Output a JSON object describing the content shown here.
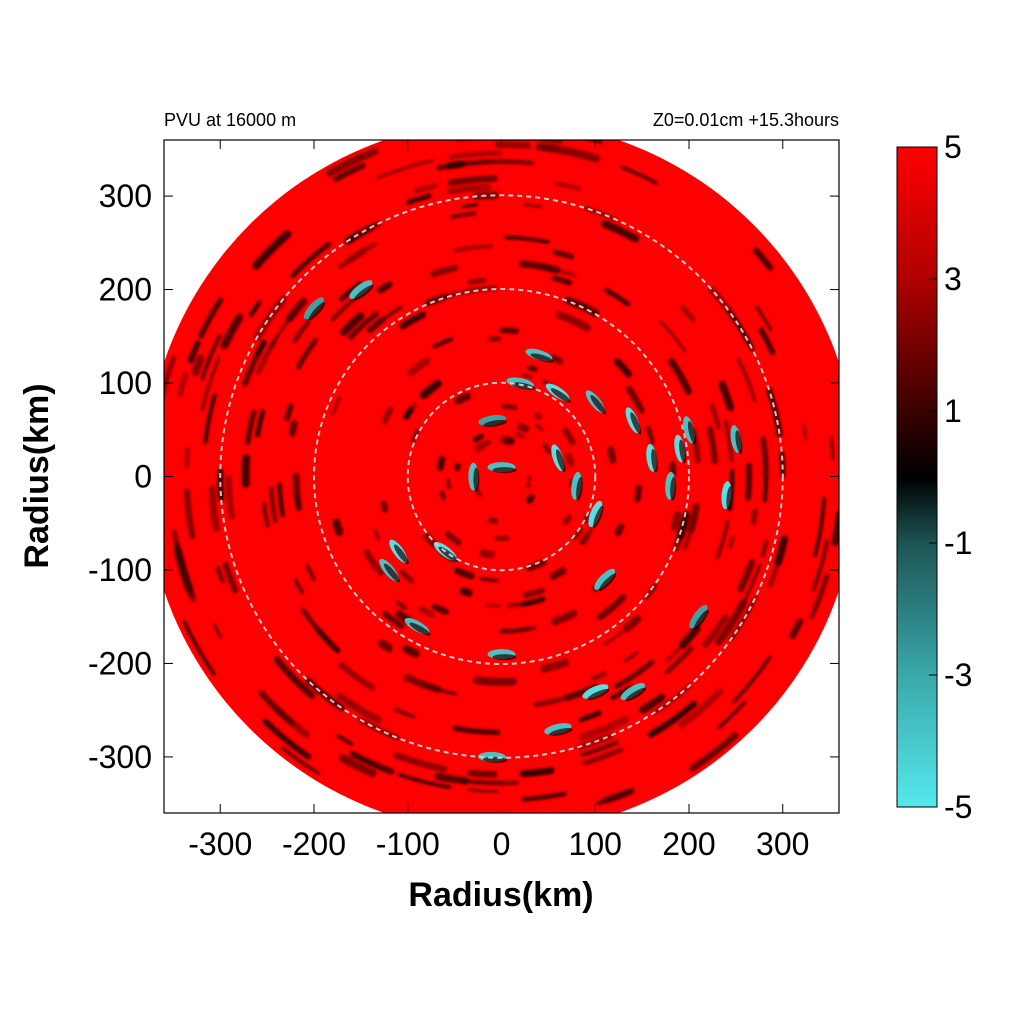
{
  "chart_data": {
    "type": "heatmap",
    "projection": "polar-domain-on-cartesian-axes",
    "title_left": "PVU at 16000 m",
    "title_right": "Z0=0.01cm  +15.3hours",
    "xlabel": "Radius(km)",
    "ylabel": "Radius(km)",
    "xlim": [
      -360,
      360
    ],
    "ylim": [
      -360,
      360
    ],
    "xticks": [
      -300,
      -200,
      -100,
      0,
      100,
      200,
      300
    ],
    "yticks": [
      300,
      200,
      100,
      0,
      -100,
      -200,
      -300
    ],
    "xtick_labels": [
      "-300",
      "-200",
      "-100",
      "0",
      "100",
      "200",
      "300"
    ],
    "ytick_labels": [
      "300",
      "200",
      "100",
      "0",
      "-100",
      "-200",
      "-300"
    ],
    "domain_radius_km": 380,
    "reference_circles_km": [
      100,
      200,
      300
    ],
    "colorbar": {
      "min": -5,
      "max": 5,
      "tick_values": [
        5,
        3,
        1,
        -1,
        -3,
        -5
      ],
      "tick_labels": [
        "5",
        "3",
        "1",
        "-1",
        "-3",
        "-5"
      ],
      "stops": [
        {
          "value": -5,
          "color": "#55e8ec"
        },
        {
          "value": -3,
          "color": "#3aa8aa"
        },
        {
          "value": -1,
          "color": "#1e5454"
        },
        {
          "value": 0,
          "color": "#000000"
        },
        {
          "value": 1,
          "color": "#3a0000"
        },
        {
          "value": 3,
          "color": "#b00000"
        },
        {
          "value": 5,
          "color": "#ff0000"
        }
      ]
    },
    "colors": {
      "background_field": "#ff0000",
      "reference_circle": "#cccccc",
      "frame": "#000000"
    },
    "negative_patches": [
      {
        "x": 20,
        "y": 100,
        "value": -4
      },
      {
        "x": 60,
        "y": 90,
        "value": -5
      },
      {
        "x": 100,
        "y": 80,
        "value": -4
      },
      {
        "x": 140,
        "y": 60,
        "value": -5
      },
      {
        "x": 160,
        "y": 20,
        "value": -5
      },
      {
        "x": 180,
        "y": -10,
        "value": -4
      },
      {
        "x": 190,
        "y": 30,
        "value": -5
      },
      {
        "x": 200,
        "y": 50,
        "value": -4
      },
      {
        "x": 240,
        "y": -20,
        "value": -5
      },
      {
        "x": 250,
        "y": 40,
        "value": -4
      },
      {
        "x": 100,
        "y": -40,
        "value": -5
      },
      {
        "x": 80,
        "y": -10,
        "value": -4
      },
      {
        "x": 60,
        "y": 20,
        "value": -5
      },
      {
        "x": 0,
        "y": 10,
        "value": -4
      },
      {
        "x": -30,
        "y": 0,
        "value": -4
      },
      {
        "x": -60,
        "y": -80,
        "value": -5
      },
      {
        "x": -110,
        "y": -80,
        "value": -5
      },
      {
        "x": -120,
        "y": -100,
        "value": -4
      },
      {
        "x": -90,
        "y": -160,
        "value": -4
      },
      {
        "x": -150,
        "y": 200,
        "value": -4
      },
      {
        "x": -200,
        "y": 180,
        "value": -3
      },
      {
        "x": 0,
        "y": -190,
        "value": -4
      },
      {
        "x": 60,
        "y": -270,
        "value": -4
      },
      {
        "x": 100,
        "y": -230,
        "value": -5
      },
      {
        "x": 140,
        "y": -230,
        "value": -4
      },
      {
        "x": 110,
        "y": -110,
        "value": -4
      },
      {
        "x": -10,
        "y": -300,
        "value": -4
      },
      {
        "x": 210,
        "y": -150,
        "value": -3
      },
      {
        "x": 40,
        "y": 130,
        "value": -4
      },
      {
        "x": -10,
        "y": 60,
        "value": -3
      }
    ]
  }
}
